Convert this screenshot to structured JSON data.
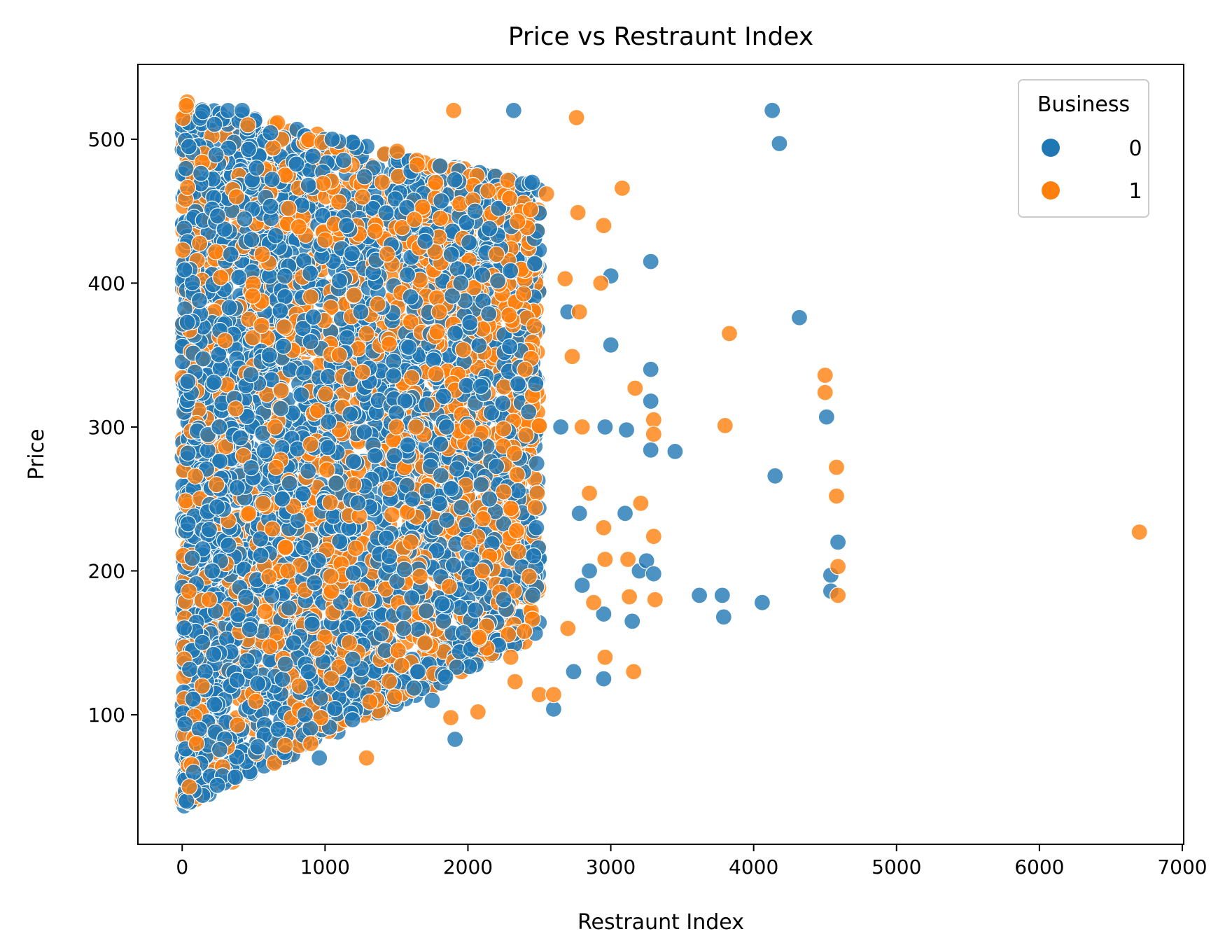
{
  "chart_data": {
    "type": "scatter",
    "title": "Price vs Restraunt Index",
    "xlabel": "Restraunt Index",
    "ylabel": "Price",
    "xlim": [
      -310,
      7010
    ],
    "ylim": [
      10,
      552
    ],
    "xticks": [
      0,
      1000,
      2000,
      3000,
      4000,
      5000,
      6000,
      7000
    ],
    "yticks": [
      100,
      200,
      300,
      400,
      500
    ],
    "grid": false,
    "legend": {
      "title": "Business",
      "placement": "top-right",
      "entries": [
        "0",
        "1"
      ]
    },
    "colors": {
      "0": "#1f77b4",
      "1": "#ff7f0e"
    },
    "marker_alpha": 0.8,
    "dense_region": {
      "x_range": [
        0,
        2500
      ],
      "y_range": [
        35,
        528
      ],
      "note_series_overlap": true
    },
    "series": [
      {
        "name": "0",
        "color": "#1f77b4",
        "points": [
          [
            30,
            40
          ],
          [
            80,
            60
          ],
          [
            120,
            90
          ],
          [
            160,
            130
          ],
          [
            210,
            200
          ],
          [
            260,
            300
          ],
          [
            340,
            420
          ],
          [
            420,
            520
          ],
          [
            520,
            480
          ],
          [
            610,
            350
          ],
          [
            700,
            250
          ],
          [
            780,
            150
          ],
          [
            860,
            100
          ],
          [
            960,
            70
          ],
          [
            1050,
            500
          ],
          [
            1150,
            440
          ],
          [
            1250,
            380
          ],
          [
            1350,
            280
          ],
          [
            1450,
            210
          ],
          [
            1550,
            160
          ],
          [
            1650,
            130
          ],
          [
            1750,
            110
          ],
          [
            1850,
            300
          ],
          [
            1910,
            83
          ],
          [
            1950,
            400
          ],
          [
            2050,
            450
          ],
          [
            2150,
            250
          ],
          [
            2250,
            180
          ],
          [
            2320,
            520
          ],
          [
            2350,
            330
          ],
          [
            2450,
            470
          ],
          [
            2480,
            230
          ],
          [
            2600,
            104
          ],
          [
            2650,
            300
          ],
          [
            2700,
            380
          ],
          [
            2740,
            130
          ],
          [
            2780,
            240
          ],
          [
            2800,
            190
          ],
          [
            2850,
            200
          ],
          [
            2950,
            125
          ],
          [
            2950,
            170
          ],
          [
            2960,
            300
          ],
          [
            3000,
            405
          ],
          [
            3000,
            357
          ],
          [
            3100,
            240
          ],
          [
            3110,
            298
          ],
          [
            3150,
            165
          ],
          [
            3200,
            200
          ],
          [
            3250,
            207
          ],
          [
            3280,
            415
          ],
          [
            3280,
            340
          ],
          [
            3280,
            318
          ],
          [
            3280,
            284
          ],
          [
            3300,
            198
          ],
          [
            3450,
            283
          ],
          [
            3620,
            183
          ],
          [
            3780,
            183
          ],
          [
            3790,
            168
          ],
          [
            4060,
            178
          ],
          [
            4130,
            520
          ],
          [
            4150,
            266
          ],
          [
            4180,
            497
          ],
          [
            4320,
            376
          ],
          [
            4510,
            307
          ],
          [
            4540,
            197
          ],
          [
            4540,
            186
          ],
          [
            4590,
            220
          ]
        ]
      },
      {
        "name": "1",
        "color": "#ff7f0e",
        "points": [
          [
            50,
            50
          ],
          [
            100,
            80
          ],
          [
            140,
            120
          ],
          [
            190,
            180
          ],
          [
            240,
            260
          ],
          [
            300,
            360
          ],
          [
            380,
            460
          ],
          [
            460,
            510
          ],
          [
            560,
            420
          ],
          [
            650,
            300
          ],
          [
            740,
            200
          ],
          [
            820,
            120
          ],
          [
            900,
            80
          ],
          [
            1000,
            430
          ],
          [
            1100,
            350
          ],
          [
            1200,
            260
          ],
          [
            1290,
            70
          ],
          [
            1300,
            180
          ],
          [
            1400,
            470
          ],
          [
            1500,
            300
          ],
          [
            1600,
            220
          ],
          [
            1700,
            150
          ],
          [
            1800,
            380
          ],
          [
            1880,
            98
          ],
          [
            1900,
            520
          ],
          [
            2000,
            300
          ],
          [
            2070,
            102
          ],
          [
            2100,
            200
          ],
          [
            2200,
            420
          ],
          [
            2300,
            140
          ],
          [
            2330,
            123
          ],
          [
            2400,
            340
          ],
          [
            2500,
            114
          ],
          [
            2550,
            462
          ],
          [
            2600,
            114
          ],
          [
            2680,
            403
          ],
          [
            2700,
            160
          ],
          [
            2730,
            349
          ],
          [
            2760,
            515
          ],
          [
            2770,
            449
          ],
          [
            2780,
            380
          ],
          [
            2800,
            300
          ],
          [
            2850,
            254
          ],
          [
            2880,
            178
          ],
          [
            2930,
            400
          ],
          [
            2950,
            440
          ],
          [
            2950,
            230
          ],
          [
            2960,
            208
          ],
          [
            2960,
            140
          ],
          [
            3080,
            466
          ],
          [
            3120,
            208
          ],
          [
            3130,
            182
          ],
          [
            3160,
            130
          ],
          [
            3170,
            327
          ],
          [
            3210,
            247
          ],
          [
            3300,
            305
          ],
          [
            3300,
            295
          ],
          [
            3300,
            224
          ],
          [
            3310,
            180
          ],
          [
            3800,
            301
          ],
          [
            3830,
            365
          ],
          [
            4500,
            336
          ],
          [
            4500,
            324
          ],
          [
            4580,
            272
          ],
          [
            4580,
            252
          ],
          [
            4590,
            203
          ],
          [
            4590,
            183
          ],
          [
            6700,
            227
          ]
        ]
      }
    ]
  }
}
